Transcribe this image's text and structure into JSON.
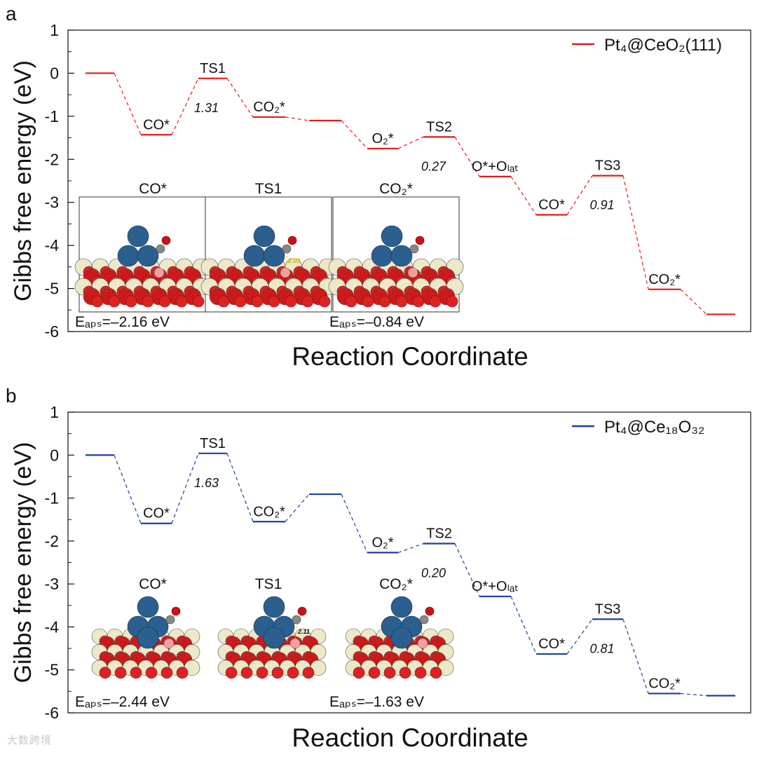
{
  "watermark": "大数跨境",
  "chart_data": [
    {
      "panel_label": "a",
      "type": "line",
      "ylabel": "Gibbs free energy (eV)",
      "xlabel": "Reaction Coordinate",
      "ylim": [
        -6,
        1
      ],
      "yticks": [
        "1",
        "0",
        "-1",
        "-2",
        "-3",
        "-4",
        "-5",
        "-6"
      ],
      "legend": "Pt₄@CeO₂(111)",
      "color": "#e31a1c",
      "levels": [
        0.0,
        -1.43,
        -0.12,
        -1.02,
        -1.1,
        -1.75,
        -1.48,
        -2.4,
        -3.29,
        -2.38,
        -5.02,
        -5.6
      ],
      "state_labels": [
        {
          "level": 1,
          "text": "CO*"
        },
        {
          "level": 2,
          "text": "TS1"
        },
        {
          "level": 3,
          "text": "CO₂*"
        },
        {
          "level": 5,
          "text": "O₂*"
        },
        {
          "level": 6,
          "text": "TS2"
        },
        {
          "level": 7,
          "text": "O*+Oₗₐₜ"
        },
        {
          "level": 8,
          "text": "CO*"
        },
        {
          "level": 9,
          "text": "TS3"
        },
        {
          "level": 10,
          "text": "CO₂*"
        }
      ],
      "barriers": [
        {
          "after_level": 1,
          "text": "1.31"
        },
        {
          "after_level": 5,
          "text": "0.27"
        },
        {
          "after_level": 8,
          "text": "0.91"
        }
      ],
      "inset_titles": [
        "CO*",
        "TS1",
        "CO₂*"
      ],
      "bond_label": "2.03",
      "eads": [
        {
          "text": "Eₐₚₛ=–2.16 eV"
        },
        {
          "text": "Eₐₚₛ=–0.84 eV"
        }
      ]
    },
    {
      "panel_label": "b",
      "type": "line",
      "ylabel": "Gibbs free energy (eV)",
      "xlabel": "Reaction Coordinate",
      "ylim": [
        -6,
        1
      ],
      "yticks": [
        "1",
        "0",
        "-1",
        "-2",
        "-3",
        "-4",
        "-5",
        "-6"
      ],
      "legend": "Pt₄@Ce₁₈O₃₂",
      "color": "#1f3fa0",
      "levels": [
        0.0,
        -1.59,
        0.04,
        -1.55,
        -0.91,
        -2.27,
        -2.06,
        -3.29,
        -4.63,
        -3.82,
        -5.55,
        -5.6
      ],
      "state_labels": [
        {
          "level": 1,
          "text": "CO*"
        },
        {
          "level": 2,
          "text": "TS1"
        },
        {
          "level": 3,
          "text": "CO₂*"
        },
        {
          "level": 5,
          "text": "O₂*"
        },
        {
          "level": 6,
          "text": "TS2"
        },
        {
          "level": 7,
          "text": "O*+Oₗₐₜ"
        },
        {
          "level": 8,
          "text": "CO*"
        },
        {
          "level": 9,
          "text": "TS3"
        },
        {
          "level": 10,
          "text": "CO₂*"
        }
      ],
      "barriers": [
        {
          "after_level": 1,
          "text": "1.63"
        },
        {
          "after_level": 5,
          "text": "0.20"
        },
        {
          "after_level": 8,
          "text": "0.81"
        }
      ],
      "inset_titles": [
        "CO*",
        "TS1",
        "CO₂*"
      ],
      "bond_label": "2.11",
      "eads": [
        {
          "text": "Eₐₚₛ=–2.44 eV"
        },
        {
          "text": "Eₐₚₛ=–1.63 eV"
        }
      ]
    }
  ]
}
